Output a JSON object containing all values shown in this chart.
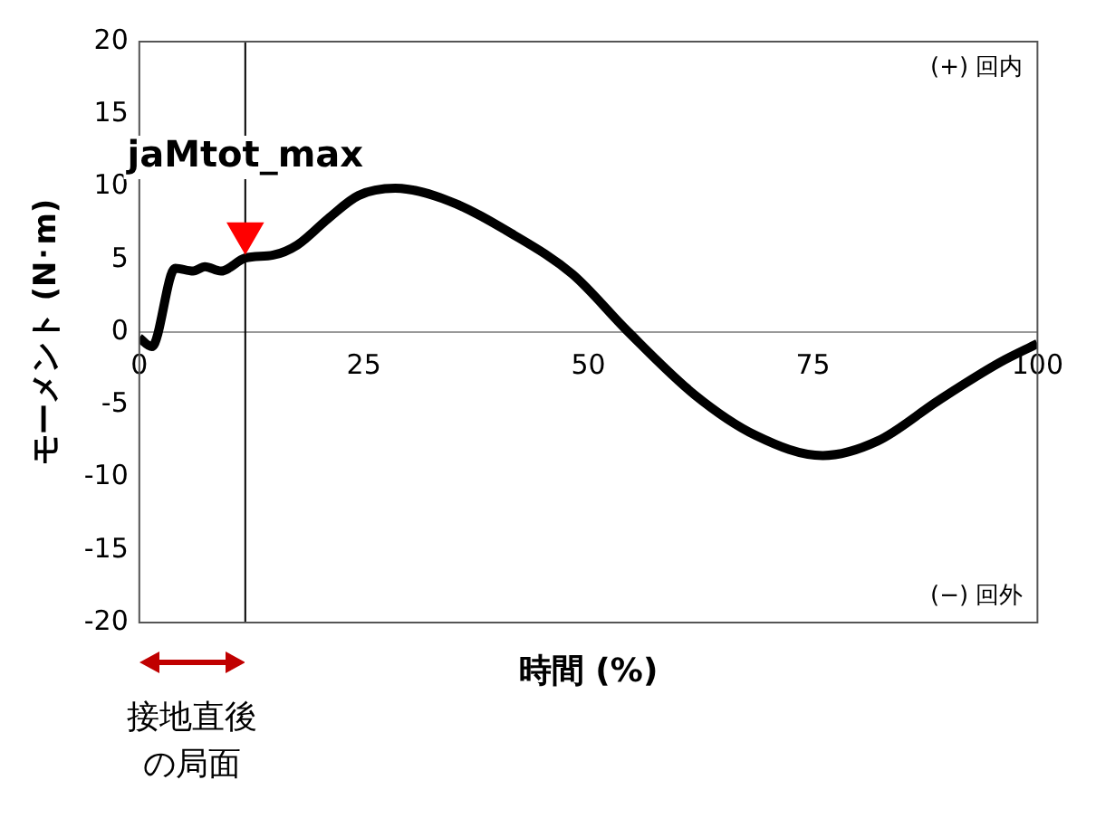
{
  "chart_data": {
    "type": "line",
    "xlabel": "時間 (%)",
    "ylabel": "モーメント (N･m)",
    "xlim": [
      0,
      100
    ],
    "xticks": [
      0,
      25,
      50,
      75,
      100
    ],
    "ylim": [
      -20,
      20
    ],
    "yticks": [
      -20,
      -15,
      -10,
      -5,
      0,
      5,
      10,
      15,
      20
    ],
    "grid": false,
    "legend": false,
    "line_style": "solid",
    "marker": "none",
    "series": [
      {
        "color": "#000000",
        "x": [
          0,
          1.4,
          4,
          6,
          7.3,
          9.1,
          11.8,
          14.9,
          17.6,
          21,
          24.4,
          28.5,
          34.6,
          41.4,
          48.2,
          54.3,
          61.8,
          68.6,
          76.1,
          82.2,
          89,
          95.8,
          100
        ],
        "values": [
          -0.4,
          -1,
          4.4,
          4.2,
          4.5,
          4.2,
          5.1,
          5.3,
          6,
          7.8,
          9.4,
          9.9,
          9,
          6.8,
          4,
          0.1,
          -4.3,
          -7.1,
          -8.5,
          -7.5,
          -4.7,
          -2.1,
          -0.8
        ]
      },
      {
        "type": "scatter",
        "marker": "triangle",
        "color": "#ff0000",
        "x": [
          11.8
        ],
        "values": [
          6.8
        ]
      }
    ],
    "ref_lines": [
      {
        "axis": "x",
        "value": 11.8,
        "label": "jaMtot_max",
        "color": "#000000"
      }
    ],
    "annotations": [
      "(+) 回内",
      "(−) 回外",
      "接地直後の局面"
    ]
  }
}
